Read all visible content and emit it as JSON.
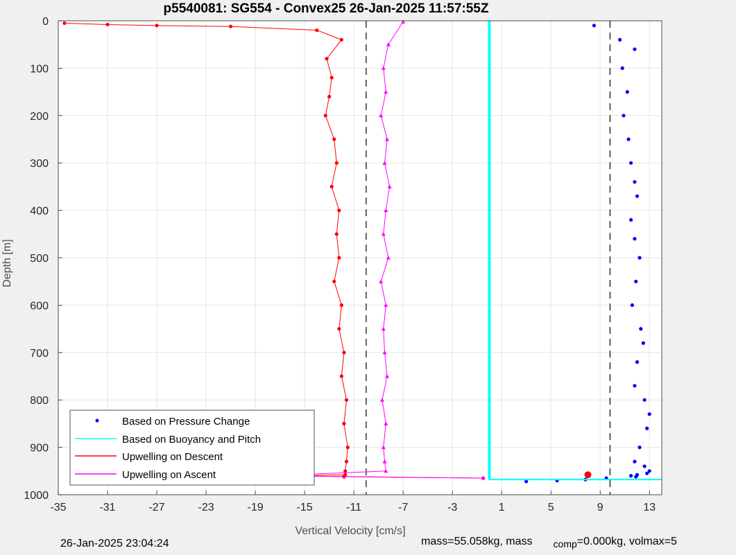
{
  "chart_data": {
    "type": "scatter",
    "title": "p5540081: SG554 - Convex25 26-Jan-2025 11:57:55Z",
    "xlabel": "Vertical Velocity [cm/s]",
    "ylabel": "Depth [m]",
    "xlim": [
      -35,
      14
    ],
    "ylim": [
      0,
      1000
    ],
    "y_reversed": true,
    "grid": true,
    "x_ticks": [
      "-35",
      "-31",
      "-27",
      "-23",
      "-19",
      "-15",
      "-11",
      "-7",
      "-3",
      "1",
      "5",
      "9",
      "13"
    ],
    "y_ticks": [
      "0",
      "100",
      "200",
      "300",
      "400",
      "500",
      "600",
      "700",
      "800",
      "900",
      "1000"
    ],
    "x_tick_values": [
      -35,
      -31,
      -27,
      -23,
      -19,
      -15,
      -11,
      -7,
      -3,
      1,
      5,
      9,
      13
    ],
    "y_tick_values": [
      0,
      100,
      200,
      300,
      400,
      500,
      600,
      700,
      800,
      900,
      1000
    ],
    "legend_position": "bottom-left",
    "series": [
      {
        "name": "Based on Pressure Change",
        "color": "#0000ff",
        "marker": "dot",
        "x": [
          8.5,
          10.6,
          11.8,
          10.8,
          11.2,
          10.9,
          11.3,
          11.5,
          11.8,
          12.0,
          11.5,
          11.8,
          12.2,
          11.9,
          11.6,
          12.3,
          12.5,
          12.0,
          11.8,
          12.6,
          13.0,
          12.8,
          12.2,
          11.8,
          12.6,
          13.0,
          12.8,
          12.0,
          11.5,
          11.9,
          9.5,
          7.8,
          5.5,
          3.0
        ],
        "y": [
          10,
          40,
          60,
          100,
          150,
          200,
          250,
          300,
          340,
          370,
          420,
          460,
          500,
          550,
          600,
          650,
          680,
          720,
          770,
          800,
          830,
          860,
          900,
          930,
          940,
          950,
          955,
          958,
          960,
          962,
          965,
          968,
          970,
          972
        ]
      },
      {
        "name": "Based on Buoyancy and Pitch",
        "color": "#00ffff",
        "marker": "line",
        "x": [
          0,
          0,
          14
        ],
        "y": [
          0,
          968,
          968
        ]
      },
      {
        "name": "Upwelling on Descent",
        "color": "#ff0000",
        "marker": "dot",
        "x": [
          -34.5,
          -31,
          -27,
          -21,
          -14,
          -12,
          -13.2,
          -12.8,
          -13.0,
          -13.3,
          -12.6,
          -12.4,
          -12.8,
          -12.2,
          -12.4,
          -12.2,
          -12.6,
          -12.0,
          -12.2,
          -11.8,
          -12.0,
          -11.6,
          -11.8,
          -11.5,
          -11.6,
          -11.7,
          -11.7,
          -16,
          -11.8,
          -0.5
        ],
        "y": [
          5,
          8,
          10,
          12,
          20,
          40,
          80,
          120,
          160,
          200,
          250,
          300,
          350,
          400,
          450,
          500,
          550,
          600,
          650,
          700,
          750,
          800,
          850,
          900,
          930,
          950,
          958,
          960,
          962,
          965
        ]
      },
      {
        "name": "Upwelling on Ascent",
        "color": "#ff00ff",
        "marker": "triangle",
        "x": [
          -7,
          -8.2,
          -8.6,
          -8.4,
          -8.8,
          -8.3,
          -8.5,
          -8.1,
          -8.4,
          -8.6,
          -8.2,
          -8.8,
          -8.4,
          -8.6,
          -8.5,
          -8.3,
          -8.7,
          -8.4,
          -8.6,
          -8.5,
          -8.4,
          -17.5,
          -0.5
        ],
        "y": [
          2,
          50,
          100,
          150,
          200,
          250,
          300,
          350,
          400,
          450,
          500,
          550,
          600,
          650,
          700,
          750,
          800,
          850,
          900,
          930,
          950,
          960,
          965
        ]
      }
    ],
    "reference_lines_x": [
      -10,
      9.8
    ],
    "annotations": {
      "large_dot": {
        "x": 8,
        "y": 958,
        "color": "#ff0000"
      }
    }
  },
  "footer": {
    "timestamp": "26-Jan-2025 23:04:24",
    "mass_text_1": "mass=55.058kg, mass",
    "mass_sub": "comp",
    "mass_text_2": "=0.000kg, volmax=5"
  }
}
